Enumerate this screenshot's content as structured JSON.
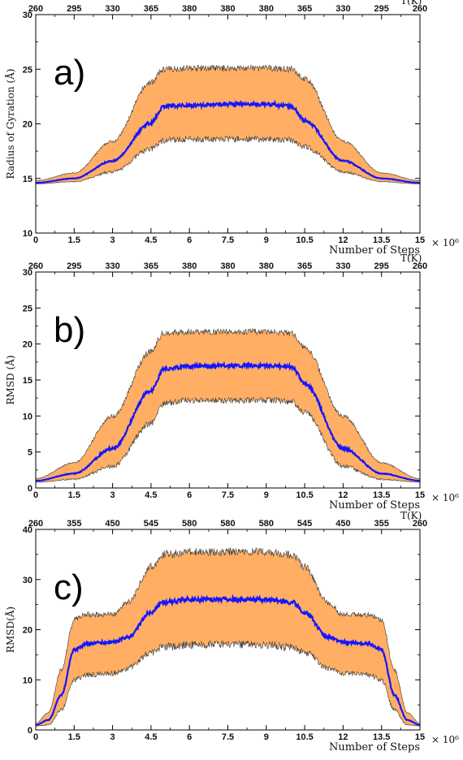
{
  "chart_data": [
    {
      "type": "area",
      "panel_label": "a)",
      "title": "",
      "xlabel": "Number of Steps",
      "x_multiplier": "× 10⁶",
      "ylabel": "Radius of Gyration (Å)",
      "top_axis_label": "T(K)",
      "xlim": [
        0,
        15
      ],
      "ylim": [
        10,
        30
      ],
      "x_ticks": [
        0,
        1.5,
        3,
        4.5,
        6,
        7.5,
        9,
        10.5,
        12,
        13.5,
        15
      ],
      "x_tick_labels": [
        "0",
        "1.5",
        "3",
        "4.5",
        "6",
        "7.5",
        "9",
        "10.5",
        "12",
        "13.5",
        "15"
      ],
      "y_ticks": [
        10,
        15,
        20,
        25,
        30
      ],
      "y_tick_labels": [
        "10",
        "15",
        "20",
        "25",
        "30"
      ],
      "top_tick_labels": [
        "260",
        "295",
        "330",
        "365",
        "380",
        "380",
        "380",
        "365",
        "330",
        "295",
        "260"
      ],
      "colors": {
        "band": "#FFAE63",
        "band_edge": "#3a3a3a",
        "mean": "#1515FF"
      },
      "series": [
        {
          "role": "mean",
          "x": [
            0,
            1.5,
            3,
            4.5,
            5,
            6,
            7.5,
            9,
            10,
            10.5,
            12,
            13.5,
            15
          ],
          "values": [
            14.6,
            15.0,
            16.6,
            20.1,
            21.6,
            21.7,
            21.8,
            21.8,
            21.6,
            20.3,
            16.6,
            15.0,
            14.6
          ]
        },
        {
          "role": "upper",
          "x": [
            0,
            1.5,
            3,
            4.5,
            5,
            6,
            7.5,
            9,
            10,
            10.5,
            12,
            13.5,
            15
          ],
          "values": [
            14.8,
            15.5,
            18.4,
            23.8,
            25.0,
            25.1,
            25.1,
            25.1,
            25.0,
            24.1,
            18.4,
            15.5,
            14.8
          ]
        },
        {
          "role": "lower",
          "x": [
            0,
            1.5,
            3,
            4.5,
            5,
            6,
            7.5,
            9,
            10,
            10.5,
            12,
            13.5,
            15
          ],
          "values": [
            14.5,
            14.7,
            15.6,
            17.7,
            18.5,
            18.6,
            18.6,
            18.6,
            18.5,
            17.9,
            15.6,
            14.7,
            14.5
          ]
        }
      ]
    },
    {
      "type": "area",
      "panel_label": "b)",
      "title": "",
      "xlabel": "Number of Steps",
      "x_multiplier": "× 10⁶",
      "ylabel": "RMSD (Å)",
      "top_axis_label": "T(K)",
      "xlim": [
        0,
        15
      ],
      "ylim": [
        0,
        30
      ],
      "x_ticks": [
        0,
        1.5,
        3,
        4.5,
        6,
        7.5,
        9,
        10.5,
        12,
        13.5,
        15
      ],
      "x_tick_labels": [
        "0",
        "1.5",
        "3",
        "4.5",
        "6",
        "7.5",
        "9",
        "10.5",
        "12",
        "13.5",
        "15"
      ],
      "y_ticks": [
        0,
        5,
        10,
        15,
        20,
        25,
        30
      ],
      "y_tick_labels": [
        "0",
        "5",
        "10",
        "15",
        "20",
        "25",
        "30"
      ],
      "top_tick_labels": [
        "260",
        "295",
        "330",
        "365",
        "380",
        "380",
        "380",
        "365",
        "330",
        "295",
        "260"
      ],
      "colors": {
        "band": "#FFAE63",
        "band_edge": "#3a3a3a",
        "mean": "#1515FF"
      },
      "series": [
        {
          "role": "mean",
          "x": [
            0,
            1.5,
            3,
            4.5,
            5,
            6,
            7.5,
            9,
            10,
            10.5,
            12,
            13.5,
            15
          ],
          "values": [
            1.0,
            2.0,
            5.5,
            13.5,
            16.5,
            16.9,
            17.0,
            17.0,
            16.8,
            14.5,
            5.5,
            2.0,
            1.0
          ]
        },
        {
          "role": "upper",
          "x": [
            0,
            1.5,
            3,
            4.5,
            5,
            6,
            7.5,
            9,
            10,
            10.5,
            12,
            13.5,
            15
          ],
          "values": [
            1.3,
            3.5,
            10.0,
            19.0,
            21.5,
            21.7,
            21.7,
            21.7,
            21.5,
            19.5,
            10.0,
            3.5,
            1.3
          ]
        },
        {
          "role": "lower",
          "x": [
            0,
            1.5,
            3,
            4.5,
            5,
            6,
            7.5,
            9,
            10,
            10.5,
            12,
            13.5,
            15
          ],
          "values": [
            0.8,
            1.2,
            3.0,
            9.0,
            11.8,
            12.2,
            12.2,
            12.2,
            12.0,
            10.5,
            3.0,
            1.2,
            0.8
          ]
        }
      ]
    },
    {
      "type": "area",
      "panel_label": "c)",
      "title": "",
      "xlabel": "Number of Steps",
      "x_multiplier": "× 10⁶",
      "ylabel": "RMSD(Å)",
      "top_axis_label": "T(K)",
      "xlim": [
        0,
        15
      ],
      "ylim": [
        0,
        40
      ],
      "x_ticks": [
        0,
        1.5,
        3,
        4.5,
        6,
        7.5,
        9,
        10.5,
        12,
        13.5,
        15
      ],
      "x_tick_labels": [
        "0",
        "1.5",
        "3",
        "4.5",
        "6",
        "7.5",
        "9",
        "10.5",
        "12",
        "13.5",
        "15"
      ],
      "y_ticks": [
        0,
        10,
        20,
        30,
        40
      ],
      "y_tick_labels": [
        "0",
        "10",
        "20",
        "30",
        "40"
      ],
      "top_tick_labels": [
        "260",
        "355",
        "450",
        "545",
        "580",
        "580",
        "580",
        "545",
        "450",
        "355",
        "260"
      ],
      "colors": {
        "band": "#FFAE63",
        "band_edge": "#3a3a3a",
        "mean": "#1515FF"
      },
      "series": [
        {
          "role": "mean",
          "x": [
            0,
            0.5,
            1.0,
            1.5,
            2.0,
            3.0,
            3.6,
            4.5,
            5.0,
            6,
            7.5,
            9,
            10,
            10.5,
            11.4,
            12.0,
            13.0,
            13.5,
            14.0,
            14.5,
            15
          ],
          "values": [
            1.0,
            2.0,
            7.0,
            16.0,
            17.2,
            17.5,
            18.5,
            23.5,
            25.5,
            26.0,
            26.0,
            26.0,
            25.5,
            23.5,
            18.5,
            17.5,
            17.2,
            16.0,
            7.0,
            2.0,
            1.0
          ]
        },
        {
          "role": "upper",
          "x": [
            0,
            0.5,
            1.0,
            1.5,
            2.0,
            3.0,
            3.6,
            4.5,
            5.0,
            6,
            7.5,
            9,
            10,
            10.5,
            11.4,
            12.0,
            13.0,
            13.5,
            14.0,
            14.5,
            15
          ],
          "values": [
            1.3,
            3.5,
            12.0,
            22.0,
            23.0,
            23.0,
            25.5,
            32.5,
            35.0,
            35.5,
            35.5,
            35.5,
            35.0,
            32.5,
            25.5,
            23.0,
            23.0,
            22.0,
            12.0,
            3.5,
            1.3
          ]
        },
        {
          "role": "lower",
          "x": [
            0,
            0.5,
            1.0,
            1.5,
            2.0,
            3.0,
            3.6,
            4.5,
            5.0,
            6,
            7.5,
            9,
            10,
            10.5,
            11.4,
            12.0,
            13.0,
            13.5,
            14.0,
            14.5,
            15
          ],
          "values": [
            0.8,
            1.0,
            4.0,
            10.0,
            11.0,
            11.3,
            12.3,
            15.5,
            16.5,
            17.0,
            17.0,
            17.0,
            16.5,
            15.5,
            12.3,
            11.3,
            11.0,
            10.0,
            4.0,
            1.0,
            0.8
          ]
        }
      ]
    }
  ]
}
